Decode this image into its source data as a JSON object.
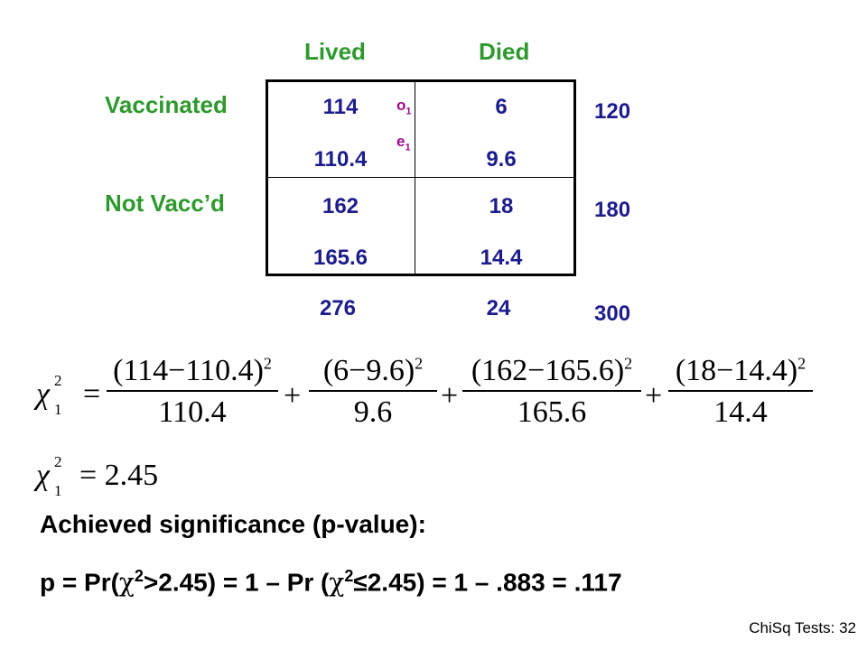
{
  "table": {
    "col_headers": [
      "Lived",
      "Died"
    ],
    "row_headers": [
      "Vaccinated",
      "Not Vacc’d"
    ],
    "cells": [
      {
        "observed": "114",
        "expected": "110.4"
      },
      {
        "observed": "6",
        "expected": "9.6"
      },
      {
        "observed": "162",
        "expected": "165.6"
      },
      {
        "observed": "18",
        "expected": "14.4"
      }
    ],
    "o_label": "o",
    "e_label": "e",
    "sub_index": "1",
    "row_totals": [
      "120",
      "180"
    ],
    "col_totals": [
      "276",
      "24"
    ],
    "grand_total": "300"
  },
  "formula1": {
    "lhs": "χ",
    "sub": "1",
    "sup": "2",
    "eq": "=",
    "terms": [
      {
        "num": "(114−110.4)",
        "den": "110.4"
      },
      {
        "num": "(6−9.6)",
        "den": "9.6"
      },
      {
        "num": "(162−165.6)",
        "den": "165.6"
      },
      {
        "num": "(18−14.4)",
        "den": "14.4"
      }
    ],
    "term_sup": "2",
    "plus": "+"
  },
  "formula2": {
    "lhs": "χ",
    "sub": "1",
    "sup": "2",
    "rhs": "= 2.45"
  },
  "text": {
    "heading": "Achieved significance (p-value):",
    "p_line_1": "p = Pr(",
    "chi": "χ",
    "two": "2",
    "p_line_2": ">2.45) = 1 – Pr (",
    "p_line_3": "≤2.45) = 1 – .883 = .117"
  },
  "footer": "ChiSq Tests:  32"
}
